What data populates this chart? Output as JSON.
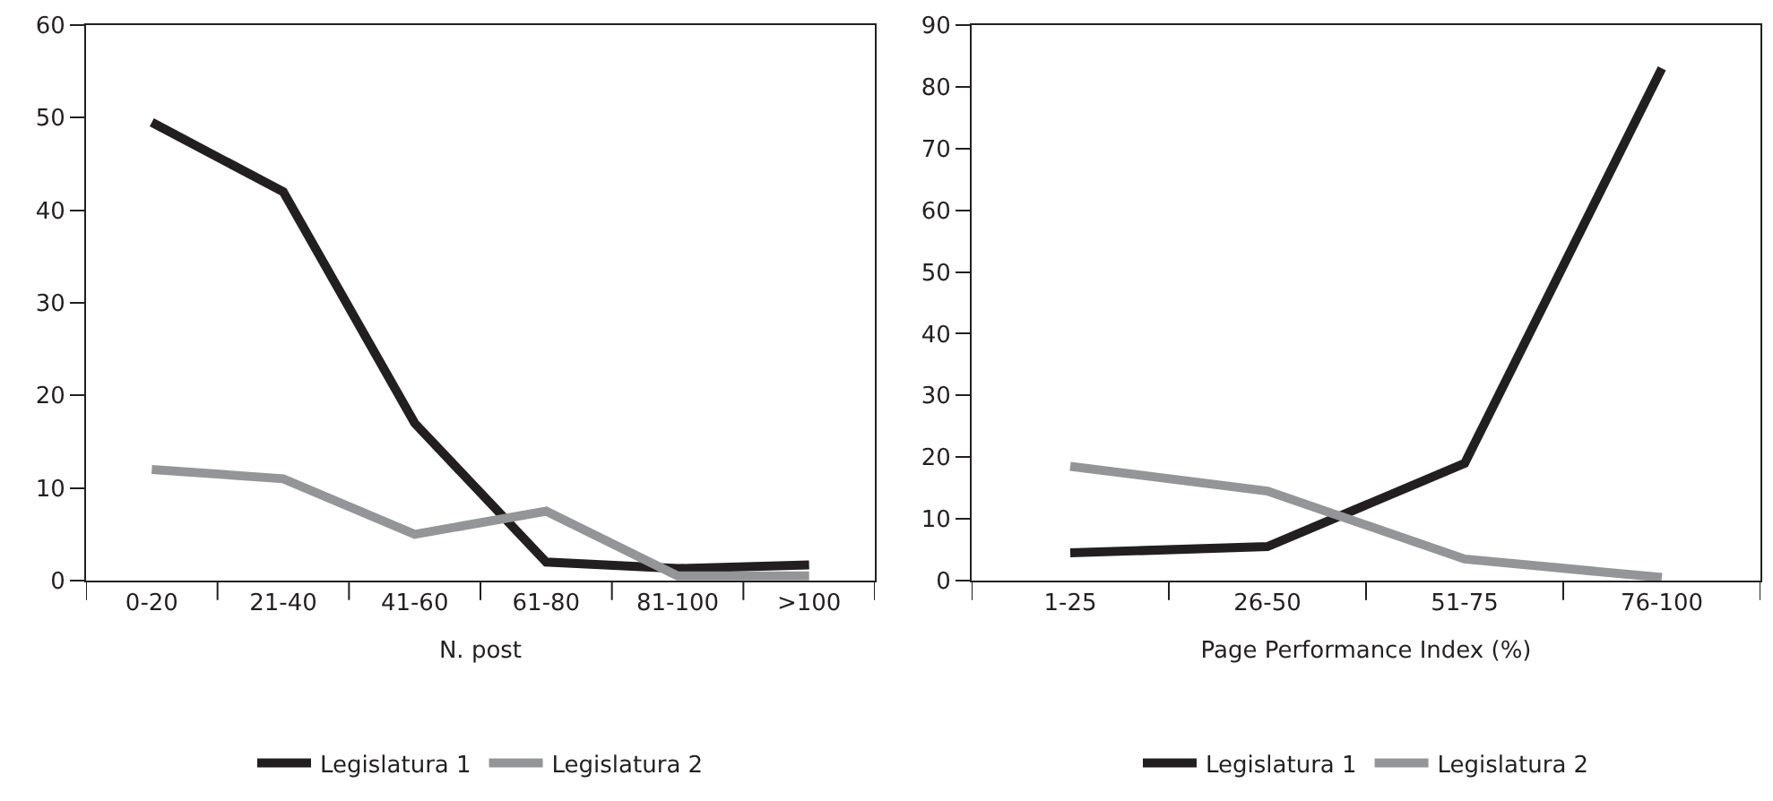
{
  "chart_data": [
    {
      "type": "line",
      "categories": [
        "0-20",
        "21-40",
        "41-60",
        "61-80",
        "81-100",
        ">100"
      ],
      "xlabel": "N. post",
      "ylim": [
        0,
        60
      ],
      "yticks": [
        0,
        10,
        20,
        30,
        40,
        50,
        60
      ],
      "grid": false,
      "legend": "bottom",
      "marker": "none",
      "line_style": "solid",
      "series": [
        {
          "name": "Legislatura 1",
          "color": "#231f20",
          "values": [
            49.5,
            42,
            17,
            2,
            1.3,
            1.7
          ]
        },
        {
          "name": "Legislatura 2",
          "color": "#939598",
          "values": [
            12,
            11,
            5,
            7.5,
            0.5,
            0.5
          ]
        }
      ]
    },
    {
      "type": "line",
      "categories": [
        "1-25",
        "26-50",
        "51-75",
        "76-100"
      ],
      "xlabel": "Page Performance Index (%)",
      "ylim": [
        0,
        90
      ],
      "yticks": [
        0,
        10,
        20,
        30,
        40,
        50,
        60,
        70,
        80,
        90
      ],
      "grid": false,
      "legend": "bottom",
      "marker": "none",
      "line_style": "solid",
      "series": [
        {
          "name": "Legislatura 1",
          "color": "#231f20",
          "values": [
            4.5,
            5.5,
            19,
            83
          ]
        },
        {
          "name": "Legislatura 2",
          "color": "#939598",
          "values": [
            18.5,
            14.5,
            3.5,
            0.5
          ]
        }
      ]
    }
  ]
}
